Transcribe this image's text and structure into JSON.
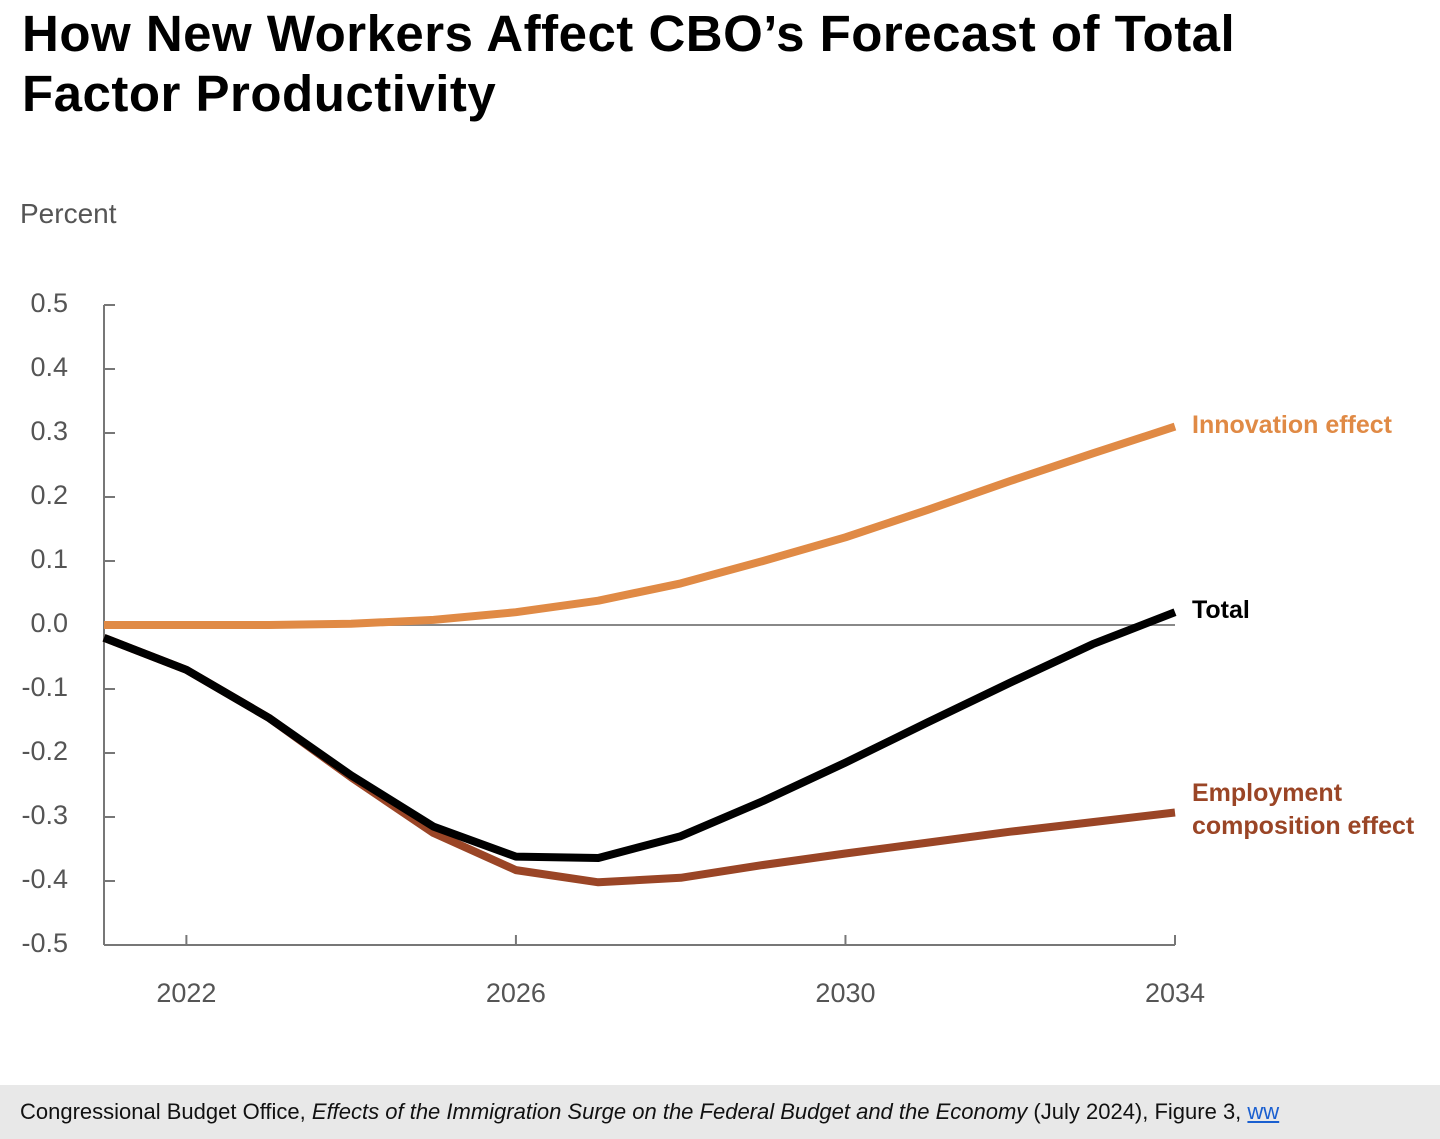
{
  "chart_data": {
    "type": "line",
    "title": "How New Workers Affect CBO’s Forecast of Total Factor Productivity",
    "y_label": "Percent",
    "x": [
      2021,
      2022,
      2023,
      2024,
      2025,
      2026,
      2027,
      2028,
      2029,
      2030,
      2031,
      2032,
      2033,
      2034
    ],
    "xlim": [
      2021,
      2034
    ],
    "xticks": [
      2022,
      2026,
      2030,
      2034
    ],
    "ylim": [
      -0.5,
      0.5
    ],
    "yticks": [
      0.5,
      0.4,
      0.3,
      0.2,
      0.1,
      {
        "value": 0,
        "label": "0.0"
      },
      -0.1,
      -0.2,
      -0.3,
      -0.4,
      -0.5
    ],
    "grid": false,
    "zero_line": true,
    "series": [
      {
        "name": "Innovation effect",
        "color": "#e08a45",
        "values": [
          0,
          0,
          0,
          0.002,
          0.008,
          0.02,
          0.038,
          0.065,
          0.1,
          0.137,
          0.18,
          0.225,
          0.268,
          0.31
        ]
      },
      {
        "name": "Total",
        "color": "#000000",
        "values": [
          -0.02,
          -0.07,
          -0.145,
          -0.235,
          -0.315,
          -0.362,
          -0.364,
          -0.33,
          -0.275,
          -0.215,
          -0.152,
          -0.09,
          -0.03,
          0.02
        ]
      },
      {
        "name": "Employment composition effect",
        "color": "#9a4526",
        "values": [
          -0.02,
          -0.07,
          -0.145,
          -0.238,
          -0.325,
          -0.383,
          -0.402,
          -0.395,
          -0.375,
          -0.357,
          -0.34,
          -0.323,
          -0.308,
          -0.293
        ]
      }
    ],
    "source": {
      "prefix": "Congressional Budget Office, ",
      "title": "Effects of the Immigration Surge on the Federal Budget and the Economy",
      "suffix": " (July 2024), Figure 3, ",
      "link": "ww"
    }
  }
}
